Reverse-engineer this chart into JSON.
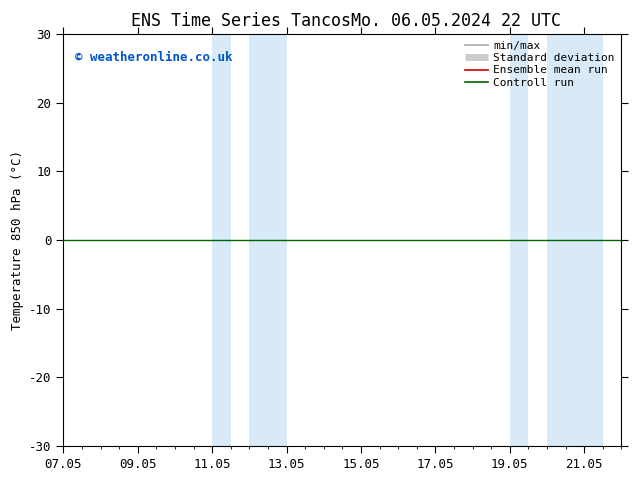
{
  "title_left": "ENS Time Series Tancos",
  "title_right": "Mo. 06.05.2024 22 UTC",
  "ylabel": "Temperature 850 hPa (°C)",
  "ylim": [
    -30,
    30
  ],
  "yticks": [
    -30,
    -20,
    -10,
    0,
    10,
    20,
    30
  ],
  "xtick_positions": [
    7,
    9,
    11,
    13,
    15,
    17,
    19,
    21
  ],
  "xtick_labels": [
    "07.05",
    "09.05",
    "11.05",
    "13.05",
    "15.05",
    "17.05",
    "19.05",
    "21.05"
  ],
  "xlim": [
    7,
    22
  ],
  "shaded_bands": [
    {
      "x_start": 11.0,
      "x_end": 11.5
    },
    {
      "x_start": 12.0,
      "x_end": 13.0
    },
    {
      "x_start": 19.0,
      "x_end": 19.5
    },
    {
      "x_start": 20.0,
      "x_end": 21.5
    }
  ],
  "shade_color": "#d8eaf7",
  "zero_line_color": "#006600",
  "copyright_text": "© weatheronline.co.uk",
  "copyright_color": "#0055cc",
  "legend_items": [
    {
      "label": "min/max",
      "color": "#aaaaaa",
      "lw": 1.2
    },
    {
      "label": "Standard deviation",
      "color": "#cccccc",
      "lw": 5
    },
    {
      "label": "Ensemble mean run",
      "color": "#cc0000",
      "lw": 1.2
    },
    {
      "label": "Controll run",
      "color": "#006600",
      "lw": 1.2
    }
  ],
  "bg_color": "#ffffff",
  "title_fontsize": 12,
  "ylabel_fontsize": 9,
  "tick_fontsize": 9,
  "copyright_fontsize": 9,
  "legend_fontsize": 8
}
